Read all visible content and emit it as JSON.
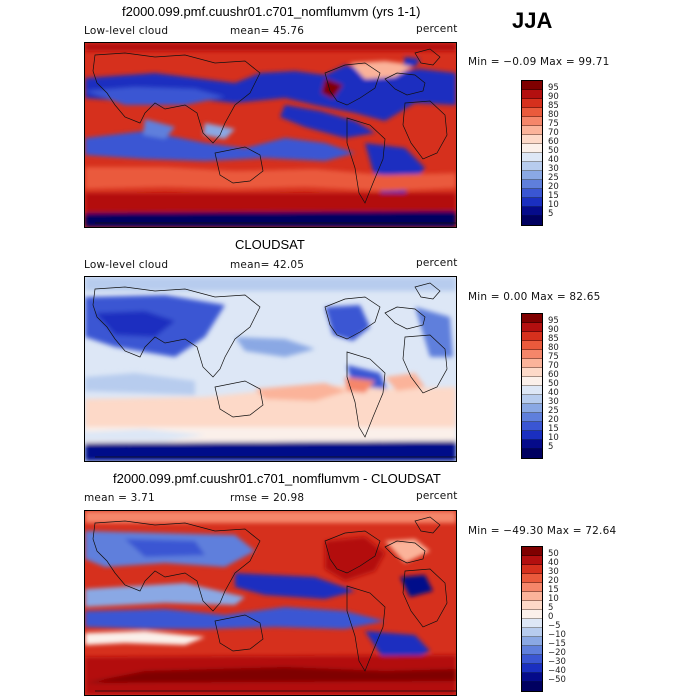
{
  "season": "JJA",
  "panels": [
    {
      "title": "f2000.099.pmf.cuushr01.c701_nomflumvm (yrs 1-1)",
      "left_label": "Low-level cloud",
      "center_label": "mean=  45.76",
      "right_label": "percent",
      "minmax": "Min =  −0.09 Max =  99.71",
      "colorbar_labels": [
        "95",
        "90",
        "85",
        "80",
        "75",
        "70",
        "60",
        "50",
        "40",
        "30",
        "25",
        "20",
        "15",
        "10",
        "5"
      ],
      "colorbar_colors": [
        "#7f0000",
        "#b30f0f",
        "#d6301d",
        "#ea5a3c",
        "#f5866a",
        "#fbb39a",
        "#fdd9c8",
        "#fbf0ea",
        "#dde7f6",
        "#b7ccee",
        "#8aa8e4",
        "#5f7fdc",
        "#3a56d3",
        "#1a2fc0",
        "#050b8a",
        "#000060"
      ]
    },
    {
      "title": "CLOUDSAT",
      "left_label": "Low-level cloud",
      "center_label": "mean=  42.05",
      "right_label": "percent",
      "minmax": "Min =   0.00 Max =  82.65",
      "colorbar_labels": [
        "95",
        "90",
        "85",
        "80",
        "75",
        "70",
        "60",
        "50",
        "40",
        "30",
        "25",
        "20",
        "15",
        "10",
        "5"
      ],
      "colorbar_colors": [
        "#7f0000",
        "#b30f0f",
        "#d6301d",
        "#ea5a3c",
        "#f5866a",
        "#fbb39a",
        "#fdd9c8",
        "#fbf0ea",
        "#dde7f6",
        "#b7ccee",
        "#8aa8e4",
        "#5f7fdc",
        "#3a56d3",
        "#1a2fc0",
        "#050b8a",
        "#000060"
      ]
    },
    {
      "title": "f2000.099.pmf.cuushr01.c701_nomflumvm - CLOUDSAT",
      "left_label": "mean =   3.71",
      "center_label": "rmse =  20.98",
      "right_label": "percent",
      "minmax": "Min = −49.30 Max =  72.64",
      "colorbar_labels": [
        "50",
        "40",
        "30",
        "20",
        "15",
        "10",
        "5",
        "0",
        "−5",
        "−10",
        "−15",
        "−20",
        "−30",
        "−40",
        "−50"
      ],
      "colorbar_colors": [
        "#7f0000",
        "#b30f0f",
        "#d6301d",
        "#ea5a3c",
        "#f5866a",
        "#fbb39a",
        "#fdd9c8",
        "#fbf0ea",
        "#dde7f6",
        "#b7ccee",
        "#8aa8e4",
        "#5f7fdc",
        "#3a56d3",
        "#1a2fc0",
        "#050b8a",
        "#000060"
      ]
    }
  ]
}
